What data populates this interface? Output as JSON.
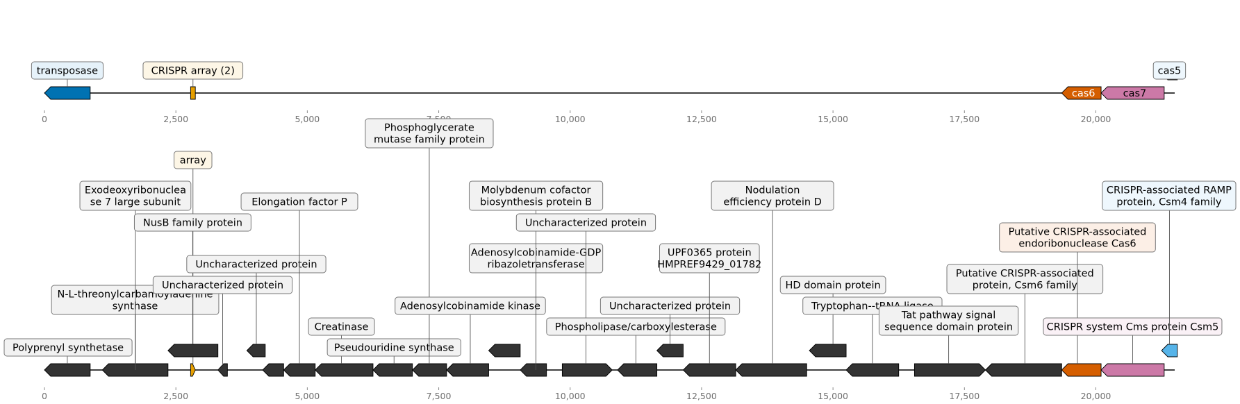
{
  "colors": {
    "transposase": "#0072b2",
    "crispr_array": "#e69f00",
    "cas6": "#d55e00",
    "cas7": "#cc79a7",
    "cas5": "#56b4e9",
    "gene_default": "#333333",
    "box_default": "#f2f2f2",
    "box_transposase": "#e6f2fa",
    "box_array": "#fdf6e6",
    "box_cas6": "#fcefe6",
    "box_cas7": "#faf1f6",
    "box_cas5": "#eef7fd"
  },
  "axis": {
    "min": 0,
    "max": 21500,
    "ticks": [
      {
        "value": 0,
        "label": "0"
      },
      {
        "value": 2500,
        "label": "2,500"
      },
      {
        "value": 5000,
        "label": "5,000"
      },
      {
        "value": 7500,
        "label": "7,500"
      },
      {
        "value": 10000,
        "label": "10,000"
      },
      {
        "value": 12500,
        "label": "12,500"
      },
      {
        "value": 15000,
        "label": "15,000"
      },
      {
        "value": 17500,
        "label": "17,500"
      },
      {
        "value": 20000,
        "label": "20,000"
      }
    ]
  },
  "top_track": {
    "features": [
      {
        "id": "transposase",
        "start": 0,
        "end": 870,
        "strand": -1,
        "color_key": "transposase",
        "row": 0,
        "label": "transposase",
        "label_level": 0,
        "box_key": "box_transposase"
      },
      {
        "id": "crispr-array",
        "start": 2780,
        "end": 2870,
        "strand": 0,
        "color_key": "crispr_array",
        "row": 0,
        "label": "CRISPR array (2)",
        "label_level": 0,
        "box_key": "box_array"
      },
      {
        "id": "cas6",
        "start": 19350,
        "end": 20100,
        "strand": -1,
        "color_key": "cas6",
        "row": 0,
        "inline": "cas6"
      },
      {
        "id": "cas7",
        "start": 20100,
        "end": 21300,
        "strand": -1,
        "color_key": "cas7",
        "row": 0,
        "inline": "cas7"
      },
      {
        "id": "cas5",
        "start": 21250,
        "end": 21550,
        "strand": -1,
        "color_key": "cas5",
        "row": 1,
        "label": "cas5",
        "label_level": 0,
        "box_key": "box_cas5"
      }
    ]
  },
  "bottom_track": {
    "features": [
      {
        "id": "polyprenyl-synthetase",
        "start": 0,
        "end": 870,
        "strand": -1,
        "color_key": "gene_default",
        "row": 0,
        "label": "Polyprenyl synthetase",
        "label_level": 0,
        "box_key": "box_default"
      },
      {
        "id": "nl-threonylcarbamoyladenine-synthase",
        "start": 1100,
        "end": 2350,
        "strand": -1,
        "color_key": "gene_default",
        "row": 0,
        "label": "N-L-threonylcarbamoyladenine\nsynthase",
        "label_level": 2,
        "box_key": "box_default"
      },
      {
        "id": "exodeoxyribonuclease",
        "start": 1850,
        "end": 2350,
        "strand": 0,
        "color_key": "gene_default",
        "row": -1,
        "label": "Exodeoxyribonuclea\nse 7 large subunit",
        "label_level": 7,
        "box_key": "box_default",
        "anchor": 1730
      },
      {
        "id": "array",
        "start": 2780,
        "end": 2870,
        "strand": 1,
        "color_key": "crispr_array",
        "row": 0,
        "label": "array",
        "label_level": 9,
        "box_key": "box_array"
      },
      {
        "id": "nusb",
        "start": 2350,
        "end": 3300,
        "strand": -1,
        "color_key": "gene_default",
        "row": 1,
        "label": "NusB family protein",
        "label_level": 6,
        "box_key": "box_default",
        "anchor": 2820
      },
      {
        "id": "small-gene-3400",
        "start": 3300,
        "end": 3480,
        "strand": -1,
        "color_key": "gene_default",
        "row": 0,
        "label": "Uncharacterized protein",
        "label_level": 3,
        "box_key": "box_default",
        "anchor": 3390
      },
      {
        "id": "uncharacterized-a",
        "start": 3850,
        "end": 4200,
        "strand": -1,
        "color_key": "gene_default",
        "row": 1,
        "label": "Uncharacterized protein",
        "label_level": 4,
        "box_key": "box_default",
        "anchor": 4030
      },
      {
        "id": "gene-4500",
        "start": 4150,
        "end": 4550,
        "strand": -1,
        "color_key": "gene_default",
        "row": 0,
        "label": "",
        "label_level": -1,
        "box_key": "box_default"
      },
      {
        "id": "elongation-factor-p",
        "start": 4550,
        "end": 5150,
        "strand": -1,
        "color_key": "gene_default",
        "row": 0,
        "label": "Elongation factor P",
        "label_level": 7,
        "box_key": "box_default",
        "anchor": 4850
      },
      {
        "id": "creatinase",
        "start": 5150,
        "end": 6250,
        "strand": -1,
        "color_key": "gene_default",
        "row": 0,
        "label": "Creatinase",
        "label_level": 1,
        "box_key": "box_default",
        "anchor": 5650
      },
      {
        "id": "pseudouridine-synthase",
        "start": 6250,
        "end": 7000,
        "strand": -1,
        "color_key": "gene_default",
        "row": 0,
        "label": "Pseudouridine synthase",
        "label_level": 0,
        "box_key": "box_default",
        "anchor": 6650
      },
      {
        "id": "phosphoglycerate-mutase",
        "start": 7000,
        "end": 7650,
        "strand": -1,
        "color_key": "gene_default",
        "row": 0,
        "label": "Phosphoglycerate\nmutase family protein",
        "label_level": 10,
        "box_key": "box_default",
        "anchor": 7320
      },
      {
        "id": "adenosylcobinamide-kinase",
        "start": 7650,
        "end": 8450,
        "strand": -1,
        "color_key": "gene_default",
        "row": 0,
        "label": "Adenosylcobinamide kinase",
        "label_level": 2,
        "box_key": "box_default",
        "anchor": 8100
      },
      {
        "id": "uncharacterized-b",
        "start": 8450,
        "end": 9050,
        "strand": -1,
        "color_key": "gene_default",
        "row": 1,
        "label": "",
        "label_level": -1,
        "box_key": "box_default",
        "anchor": 8750
      },
      {
        "id": "adenosylcobinamide-gdp",
        "start": 9050,
        "end": 9550,
        "strand": -1,
        "color_key": "gene_default",
        "row": 0,
        "label": "Adenosylcobinamide-GDP\nribazoletransferase",
        "label_level": 4,
        "box_key": "box_default",
        "anchor": 9350
      },
      {
        "id": "molybdenum-cofactor",
        "start": 9050,
        "end": 9550,
        "strand": 0,
        "color_key": "gene_default",
        "row": -1,
        "label": "Molybdenum cofactor\nbiosynthesis protein B",
        "label_level": 7,
        "box_key": "box_default",
        "anchor": 9350
      },
      {
        "id": "uncharacterized-c",
        "start": 9850,
        "end": 10800,
        "strand": 1,
        "color_key": "gene_default",
        "row": 0,
        "label": "Uncharacterized protein",
        "label_level": 6,
        "box_key": "box_default",
        "anchor": 10300
      },
      {
        "id": "phospholipase",
        "start": 10900,
        "end": 11650,
        "strand": -1,
        "color_key": "gene_default",
        "row": 0,
        "label": "Phospholipase/carboxylesterase",
        "label_level": 1,
        "box_key": "box_default",
        "anchor": 11250
      },
      {
        "id": "uncharacterized-d",
        "start": 11650,
        "end": 12150,
        "strand": -1,
        "color_key": "gene_default",
        "row": 1,
        "label": "Uncharacterized protein",
        "label_level": 2,
        "box_key": "box_default",
        "anchor": 11900
      },
      {
        "id": "upf0365",
        "start": 12150,
        "end": 13150,
        "strand": -1,
        "color_key": "gene_default",
        "row": 0,
        "label": "UPF0365 protein\nHMPREF9429_01782",
        "label_level": 4,
        "box_key": "box_default",
        "anchor": 12650
      },
      {
        "id": "nodulation-efficiency",
        "start": 13150,
        "end": 14500,
        "strand": -1,
        "color_key": "gene_default",
        "row": 0,
        "label": "Nodulation\nefficiency protein D",
        "label_level": 7,
        "box_key": "box_default",
        "anchor": 13850
      },
      {
        "id": "hd-domain",
        "start": 14550,
        "end": 15250,
        "strand": -1,
        "color_key": "gene_default",
        "row": 1,
        "label": "HD domain protein",
        "label_level": 3,
        "box_key": "box_default",
        "anchor": 15000
      },
      {
        "id": "trp-trna-ligase",
        "start": 15250,
        "end": 16250,
        "strand": -1,
        "color_key": "gene_default",
        "row": 0,
        "label": "Tryptophan--tRNA ligase",
        "label_level": 2,
        "box_key": "box_default",
        "anchor": 15750
      },
      {
        "id": "tat-pathway",
        "start": 16550,
        "end": 17900,
        "strand": 1,
        "color_key": "gene_default",
        "row": 0,
        "label": "Tat pathway signal\nsequence domain protein",
        "label_level": 1,
        "box_key": "box_default",
        "anchor": 17200
      },
      {
        "id": "csm6",
        "start": 17900,
        "end": 19350,
        "strand": -1,
        "color_key": "gene_default",
        "row": 0,
        "label": "Putative CRISPR-associated\nprotein, Csm6 family",
        "label_level": 3,
        "box_key": "box_default",
        "anchor": 18650
      },
      {
        "id": "cas6-bottom",
        "start": 19350,
        "end": 20100,
        "strand": -1,
        "color_key": "cas6",
        "row": 0,
        "label": "Putative CRISPR-associated\nendoribonuclease Cas6",
        "label_level": 5,
        "box_key": "box_cas6",
        "anchor": 19650
      },
      {
        "id": "cas7-bottom",
        "start": 20100,
        "end": 21300,
        "strand": -1,
        "color_key": "cas7",
        "row": 0,
        "label": "CRISPR system Cms protein Csm5",
        "label_level": 1,
        "box_key": "box_cas7",
        "anchor": 20700
      },
      {
        "id": "cas5-bottom",
        "start": 21250,
        "end": 21550,
        "strand": -1,
        "color_key": "cas5",
        "row": 1,
        "label": "CRISPR-associated RAMP\nprotein, Csm4 family",
        "label_level": 7,
        "box_key": "box_cas5",
        "anchor": 21400
      }
    ]
  }
}
